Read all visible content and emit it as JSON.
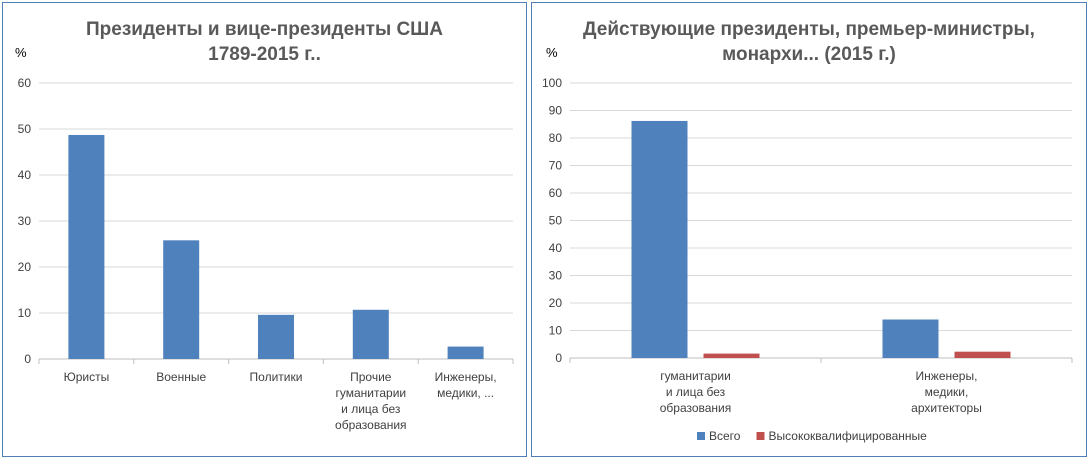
{
  "chart_data": [
    {
      "type": "bar",
      "title_lines": [
        "Президенты и вице-президенты США",
        "1789-2015 г.."
      ],
      "unit": "%",
      "ylim": [
        0,
        60
      ],
      "yticks": [
        0,
        10,
        20,
        30,
        40,
        50,
        60
      ],
      "grid": true,
      "categories": [
        [
          "Юристы"
        ],
        [
          "Военные"
        ],
        [
          "Политики"
        ],
        [
          "Прочие",
          "гуманитарии",
          "и лица без",
          "образования"
        ],
        [
          "Инженеры,",
          "медики, ..."
        ]
      ],
      "series": [
        {
          "values": [
            48.7,
            25.8,
            9.6,
            10.7,
            2.7
          ],
          "color": "#4f81bd"
        }
      ]
    },
    {
      "type": "bar",
      "title_lines": [
        "Действующие президенты, премьер-министры,",
        "монархи... (2015 г.)"
      ],
      "unit": "%",
      "ylim": [
        0,
        100
      ],
      "yticks": [
        0,
        10,
        20,
        30,
        40,
        50,
        60,
        70,
        80,
        90,
        100
      ],
      "grid": true,
      "legend_position": "bottom",
      "categories": [
        [
          "гуманитарии",
          "и лица без",
          "образования"
        ],
        [
          "Инженеры,",
          "медики,",
          "архитекторы"
        ]
      ],
      "series": [
        {
          "name": "Всего",
          "values": [
            86.2,
            14.0
          ],
          "color": "#4f81bd"
        },
        {
          "name": "Высококвалифицированные",
          "values": [
            1.6,
            2.3
          ],
          "color": "#c0504d"
        }
      ]
    }
  ]
}
